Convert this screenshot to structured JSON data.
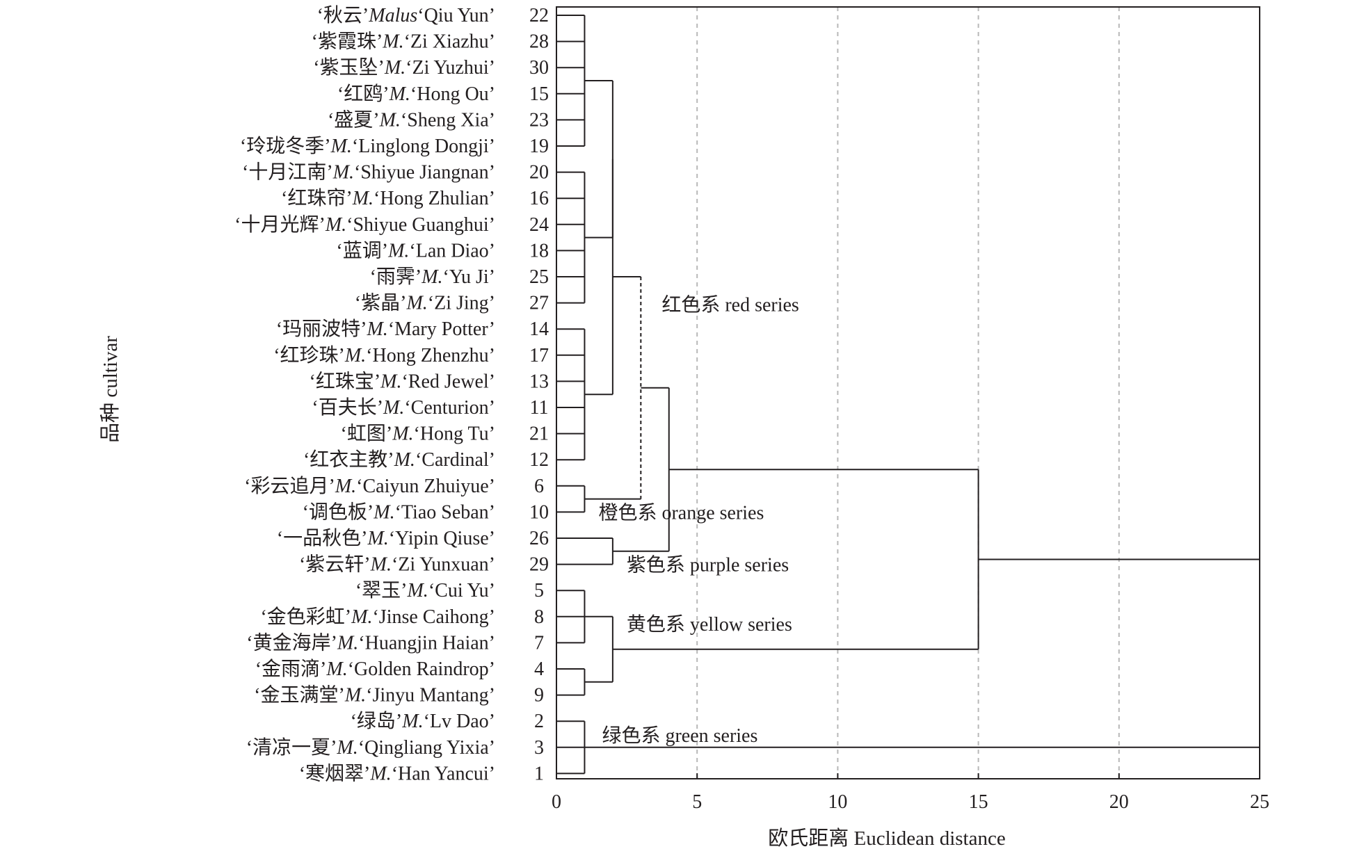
{
  "chart_data": {
    "type": "dendrogram",
    "title": "",
    "xlabel": "欧氏距离 Euclidean distance",
    "ylabel": "品种 cultivar",
    "xlim": [
      0,
      25
    ],
    "xticks": [
      0,
      5,
      10,
      15,
      20,
      25
    ],
    "grid": "vertical dashed",
    "leaves": [
      {
        "id": 22,
        "zh": "秋云",
        "genus": "Malus",
        "name": "Qiu Yun"
      },
      {
        "id": 28,
        "zh": "紫霞珠",
        "genus": "M.",
        "name": "Zi Xiazhu"
      },
      {
        "id": 30,
        "zh": "紫玉坠",
        "genus": "M.",
        "name": "Zi Yuzhui"
      },
      {
        "id": 15,
        "zh": "红鸥",
        "genus": "M.",
        "name": "Hong Ou"
      },
      {
        "id": 23,
        "zh": "盛夏",
        "genus": "M.",
        "name": "Sheng Xia"
      },
      {
        "id": 19,
        "zh": "玲珑冬季",
        "genus": "M.",
        "name": "Linglong Dongji"
      },
      {
        "id": 20,
        "zh": "十月江南",
        "genus": "M.",
        "name": "Shiyue Jiangnan"
      },
      {
        "id": 16,
        "zh": "红珠帘",
        "genus": "M.",
        "name": "Hong Zhulian"
      },
      {
        "id": 24,
        "zh": "十月光辉",
        "genus": "M.",
        "name": "Shiyue Guanghui"
      },
      {
        "id": 18,
        "zh": "蓝调",
        "genus": "M.",
        "name": "Lan Diao"
      },
      {
        "id": 25,
        "zh": "雨霁",
        "genus": "M.",
        "name": "Yu Ji"
      },
      {
        "id": 27,
        "zh": "紫晶",
        "genus": "M.",
        "name": "Zi Jing"
      },
      {
        "id": 14,
        "zh": "玛丽波特",
        "genus": "M.",
        "name": "Mary Potter"
      },
      {
        "id": 17,
        "zh": "红珍珠",
        "genus": "M.",
        "name": "Hong Zhenzhu"
      },
      {
        "id": 13,
        "zh": "红珠宝",
        "genus": "M.",
        "name": "Red Jewel"
      },
      {
        "id": 11,
        "zh": "百夫长",
        "genus": "M.",
        "name": "Centurion"
      },
      {
        "id": 21,
        "zh": "虹图",
        "genus": "M.",
        "name": "Hong Tu"
      },
      {
        "id": 12,
        "zh": "红衣主教",
        "genus": "M.",
        "name": "Cardinal"
      },
      {
        "id": 6,
        "zh": "彩云追月",
        "genus": "M.",
        "name": "Caiyun Zhuiyue"
      },
      {
        "id": 10,
        "zh": "调色板",
        "genus": "M.",
        "name": "Tiao Seban"
      },
      {
        "id": 26,
        "zh": "一品秋色",
        "genus": "M.",
        "name": "Yipin Qiuse"
      },
      {
        "id": 29,
        "zh": "紫云轩",
        "genus": "M.",
        "name": "Zi Yunxuan"
      },
      {
        "id": 5,
        "zh": "翠玉",
        "genus": "M.",
        "name": "Cui Yu"
      },
      {
        "id": 8,
        "zh": "金色彩虹",
        "genus": "M.",
        "name": "Jinse Caihong"
      },
      {
        "id": 7,
        "zh": "黄金海岸",
        "genus": "M.",
        "name": "Huangjin Haian"
      },
      {
        "id": 4,
        "zh": "金雨滴",
        "genus": "M.",
        "name": "Golden Raindrop"
      },
      {
        "id": 9,
        "zh": "金玉满堂",
        "genus": "M.",
        "name": "Jinyu Mantang"
      },
      {
        "id": 2,
        "zh": "绿岛",
        "genus": "M.",
        "name": "Lv Dao"
      },
      {
        "id": 3,
        "zh": "清凉一夏",
        "genus": "M.",
        "name": "Qingliang Yixia"
      },
      {
        "id": 1,
        "zh": "寒烟翠",
        "genus": "M.",
        "name": "Han Yancui"
      }
    ],
    "merges": [
      {
        "id": "redA",
        "distance": 1,
        "members": [
          0,
          1,
          2,
          3,
          4,
          5
        ]
      },
      {
        "id": "redB",
        "distance": 1,
        "members": [
          6,
          7,
          8,
          9,
          10,
          11
        ]
      },
      {
        "id": "redC",
        "distance": 1,
        "members": [
          12,
          13,
          14,
          15,
          16,
          17
        ]
      },
      {
        "id": "orange",
        "distance": 1,
        "members": [
          18,
          19
        ]
      },
      {
        "id": "purple",
        "distance": 2,
        "members": [
          20,
          21
        ]
      },
      {
        "id": "yellowA",
        "distance": 1,
        "members": [
          22,
          23,
          24
        ]
      },
      {
        "id": "yellowB",
        "distance": 1,
        "members": [
          25,
          26
        ]
      },
      {
        "id": "green",
        "distance": 1,
        "members": [
          27,
          28,
          29
        ]
      },
      {
        "id": "redAB",
        "distance": 2,
        "members": [
          "redA",
          "redB"
        ]
      },
      {
        "id": "redABC",
        "distance": 2,
        "members": [
          "redAB",
          "redC"
        ]
      },
      {
        "id": "yellow",
        "distance": 2,
        "members": [
          "yellowA",
          "yellowB"
        ]
      },
      {
        "id": "redOrange",
        "distance": 3,
        "members": [
          "redABC",
          "orange"
        ],
        "style": "dashed"
      },
      {
        "id": "redOrangePurple",
        "distance": 4,
        "members": [
          "redOrange",
          "purple"
        ]
      },
      {
        "id": "rpy",
        "distance": 15,
        "members": [
          "redOrangePurple",
          "yellow"
        ]
      },
      {
        "id": "root",
        "distance": 25,
        "members": [
          "rpy",
          "green"
        ]
      }
    ],
    "annotations": [
      {
        "text": "红色系 red series",
        "group": "red"
      },
      {
        "text": "橙色系 orange series",
        "group": "orange"
      },
      {
        "text": "紫色系 purple series",
        "group": "purple"
      },
      {
        "text": "黄色系 yellow series",
        "group": "yellow"
      },
      {
        "text": "绿色系 green series",
        "group": "green"
      }
    ],
    "colors": {
      "line": "#231f20",
      "grid": "#b8b8b8"
    }
  }
}
